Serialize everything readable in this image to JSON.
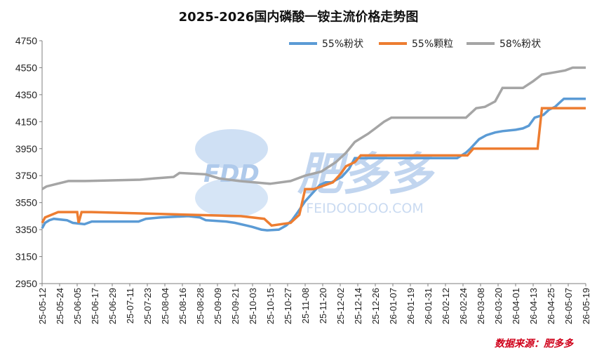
{
  "chart_data": {
    "type": "line",
    "title": "2025-2026国内磷酸一铵主流价格走势图",
    "source": "数据来源：肥多多",
    "watermark": {
      "brand": "FDD",
      "name": "肥多多",
      "url": "FEIDOODOO.COM"
    },
    "ylim": [
      2950,
      4750
    ],
    "yticks": [
      2950,
      3150,
      3350,
      3550,
      3750,
      3950,
      4150,
      4350,
      4550,
      4750
    ],
    "xlim": [
      "25-05-12",
      "26-05-19"
    ],
    "xticks": [
      "25-05-12",
      "25-05-24",
      "25-06-05",
      "25-06-17",
      "25-06-29",
      "25-07-11",
      "25-07-23",
      "25-08-04",
      "25-08-16",
      "25-08-28",
      "25-09-09",
      "25-09-21",
      "25-10-03",
      "25-10-15",
      "25-10-27",
      "25-11-08",
      "25-11-20",
      "25-12-02",
      "25-12-14",
      "25-12-26",
      "26-01-07",
      "26-01-19",
      "26-01-31",
      "26-02-12",
      "26-02-24",
      "26-03-08",
      "26-03-20",
      "26-04-01",
      "26-04-13",
      "26-04-25",
      "26-05-07",
      "26-05-19"
    ],
    "legend_position": "top-right",
    "grid": false,
    "series": [
      {
        "name": "55%粉状",
        "color": "#5b9bd5",
        "x": [
          "25-05-12",
          "25-05-14",
          "25-05-17",
          "25-05-20",
          "25-05-29",
          "25-06-02",
          "25-06-10",
          "25-06-15",
          "25-07-17",
          "25-07-22",
          "25-08-01",
          "25-08-20",
          "25-08-28",
          "25-09-01",
          "25-09-15",
          "25-09-21",
          "25-09-29",
          "25-10-03",
          "25-10-09",
          "25-10-13",
          "25-10-21",
          "25-10-26",
          "25-10-30",
          "25-11-03",
          "25-11-08",
          "25-11-18",
          "25-11-22",
          "25-11-26",
          "25-12-03",
          "25-12-08",
          "25-12-12",
          "26-02-20",
          "26-02-26",
          "26-03-01",
          "26-03-07",
          "26-03-12",
          "26-03-18",
          "26-03-23",
          "26-04-01",
          "26-04-06",
          "26-04-10",
          "26-04-14",
          "26-04-20",
          "26-04-24",
          "26-04-28",
          "26-05-01",
          "26-05-04",
          "26-05-19"
        ],
        "values": [
          3360,
          3400,
          3420,
          3430,
          3420,
          3400,
          3390,
          3410,
          3410,
          3430,
          3440,
          3450,
          3440,
          3420,
          3410,
          3400,
          3380,
          3370,
          3350,
          3345,
          3350,
          3380,
          3420,
          3480,
          3560,
          3680,
          3700,
          3700,
          3740,
          3800,
          3880,
          3880,
          3920,
          3950,
          4020,
          4050,
          4070,
          4080,
          4090,
          4100,
          4120,
          4180,
          4200,
          4240,
          4260,
          4290,
          4320,
          4320
        ]
      },
      {
        "name": "55%颗粒",
        "color": "#ed7d31",
        "x": [
          "25-05-12",
          "25-05-14",
          "25-05-23",
          "25-06-05",
          "25-06-06",
          "25-06-08",
          "25-06-15",
          "25-09-25",
          "25-10-11",
          "25-10-16",
          "25-10-29",
          "25-11-04",
          "25-11-08",
          "25-11-14",
          "25-11-27",
          "25-12-02",
          "25-12-06",
          "25-12-12",
          "25-12-16",
          "26-02-27",
          "26-03-03",
          "26-04-16",
          "26-04-19",
          "26-05-19"
        ],
        "values": [
          3400,
          3440,
          3480,
          3480,
          3400,
          3480,
          3480,
          3450,
          3430,
          3380,
          3400,
          3460,
          3650,
          3650,
          3700,
          3760,
          3820,
          3850,
          3900,
          3900,
          3950,
          3950,
          4250,
          4250
        ]
      },
      {
        "name": "58%粉状",
        "color": "#a5a5a5",
        "x": [
          "25-05-12",
          "25-05-15",
          "25-05-30",
          "25-06-10",
          "25-07-18",
          "25-07-28",
          "25-08-10",
          "25-08-14",
          "25-09-01",
          "25-09-10",
          "25-09-24",
          "25-10-15",
          "25-10-29",
          "25-11-08",
          "25-11-19",
          "25-11-29",
          "25-12-06",
          "25-12-12",
          "25-12-21",
          "25-12-26",
          "26-01-01",
          "26-01-06",
          "26-02-26",
          "26-03-05",
          "26-03-11",
          "26-03-18",
          "26-03-23",
          "26-04-06",
          "26-04-13",
          "26-04-19",
          "26-04-30",
          "26-05-05",
          "26-05-10",
          "26-05-19"
        ],
        "values": [
          3650,
          3670,
          3710,
          3710,
          3720,
          3730,
          3740,
          3770,
          3760,
          3730,
          3710,
          3690,
          3710,
          3750,
          3780,
          3850,
          3920,
          4000,
          4060,
          4100,
          4150,
          4180,
          4180,
          4250,
          4260,
          4300,
          4400,
          4400,
          4450,
          4500,
          4520,
          4530,
          4550,
          4550
        ]
      }
    ]
  }
}
